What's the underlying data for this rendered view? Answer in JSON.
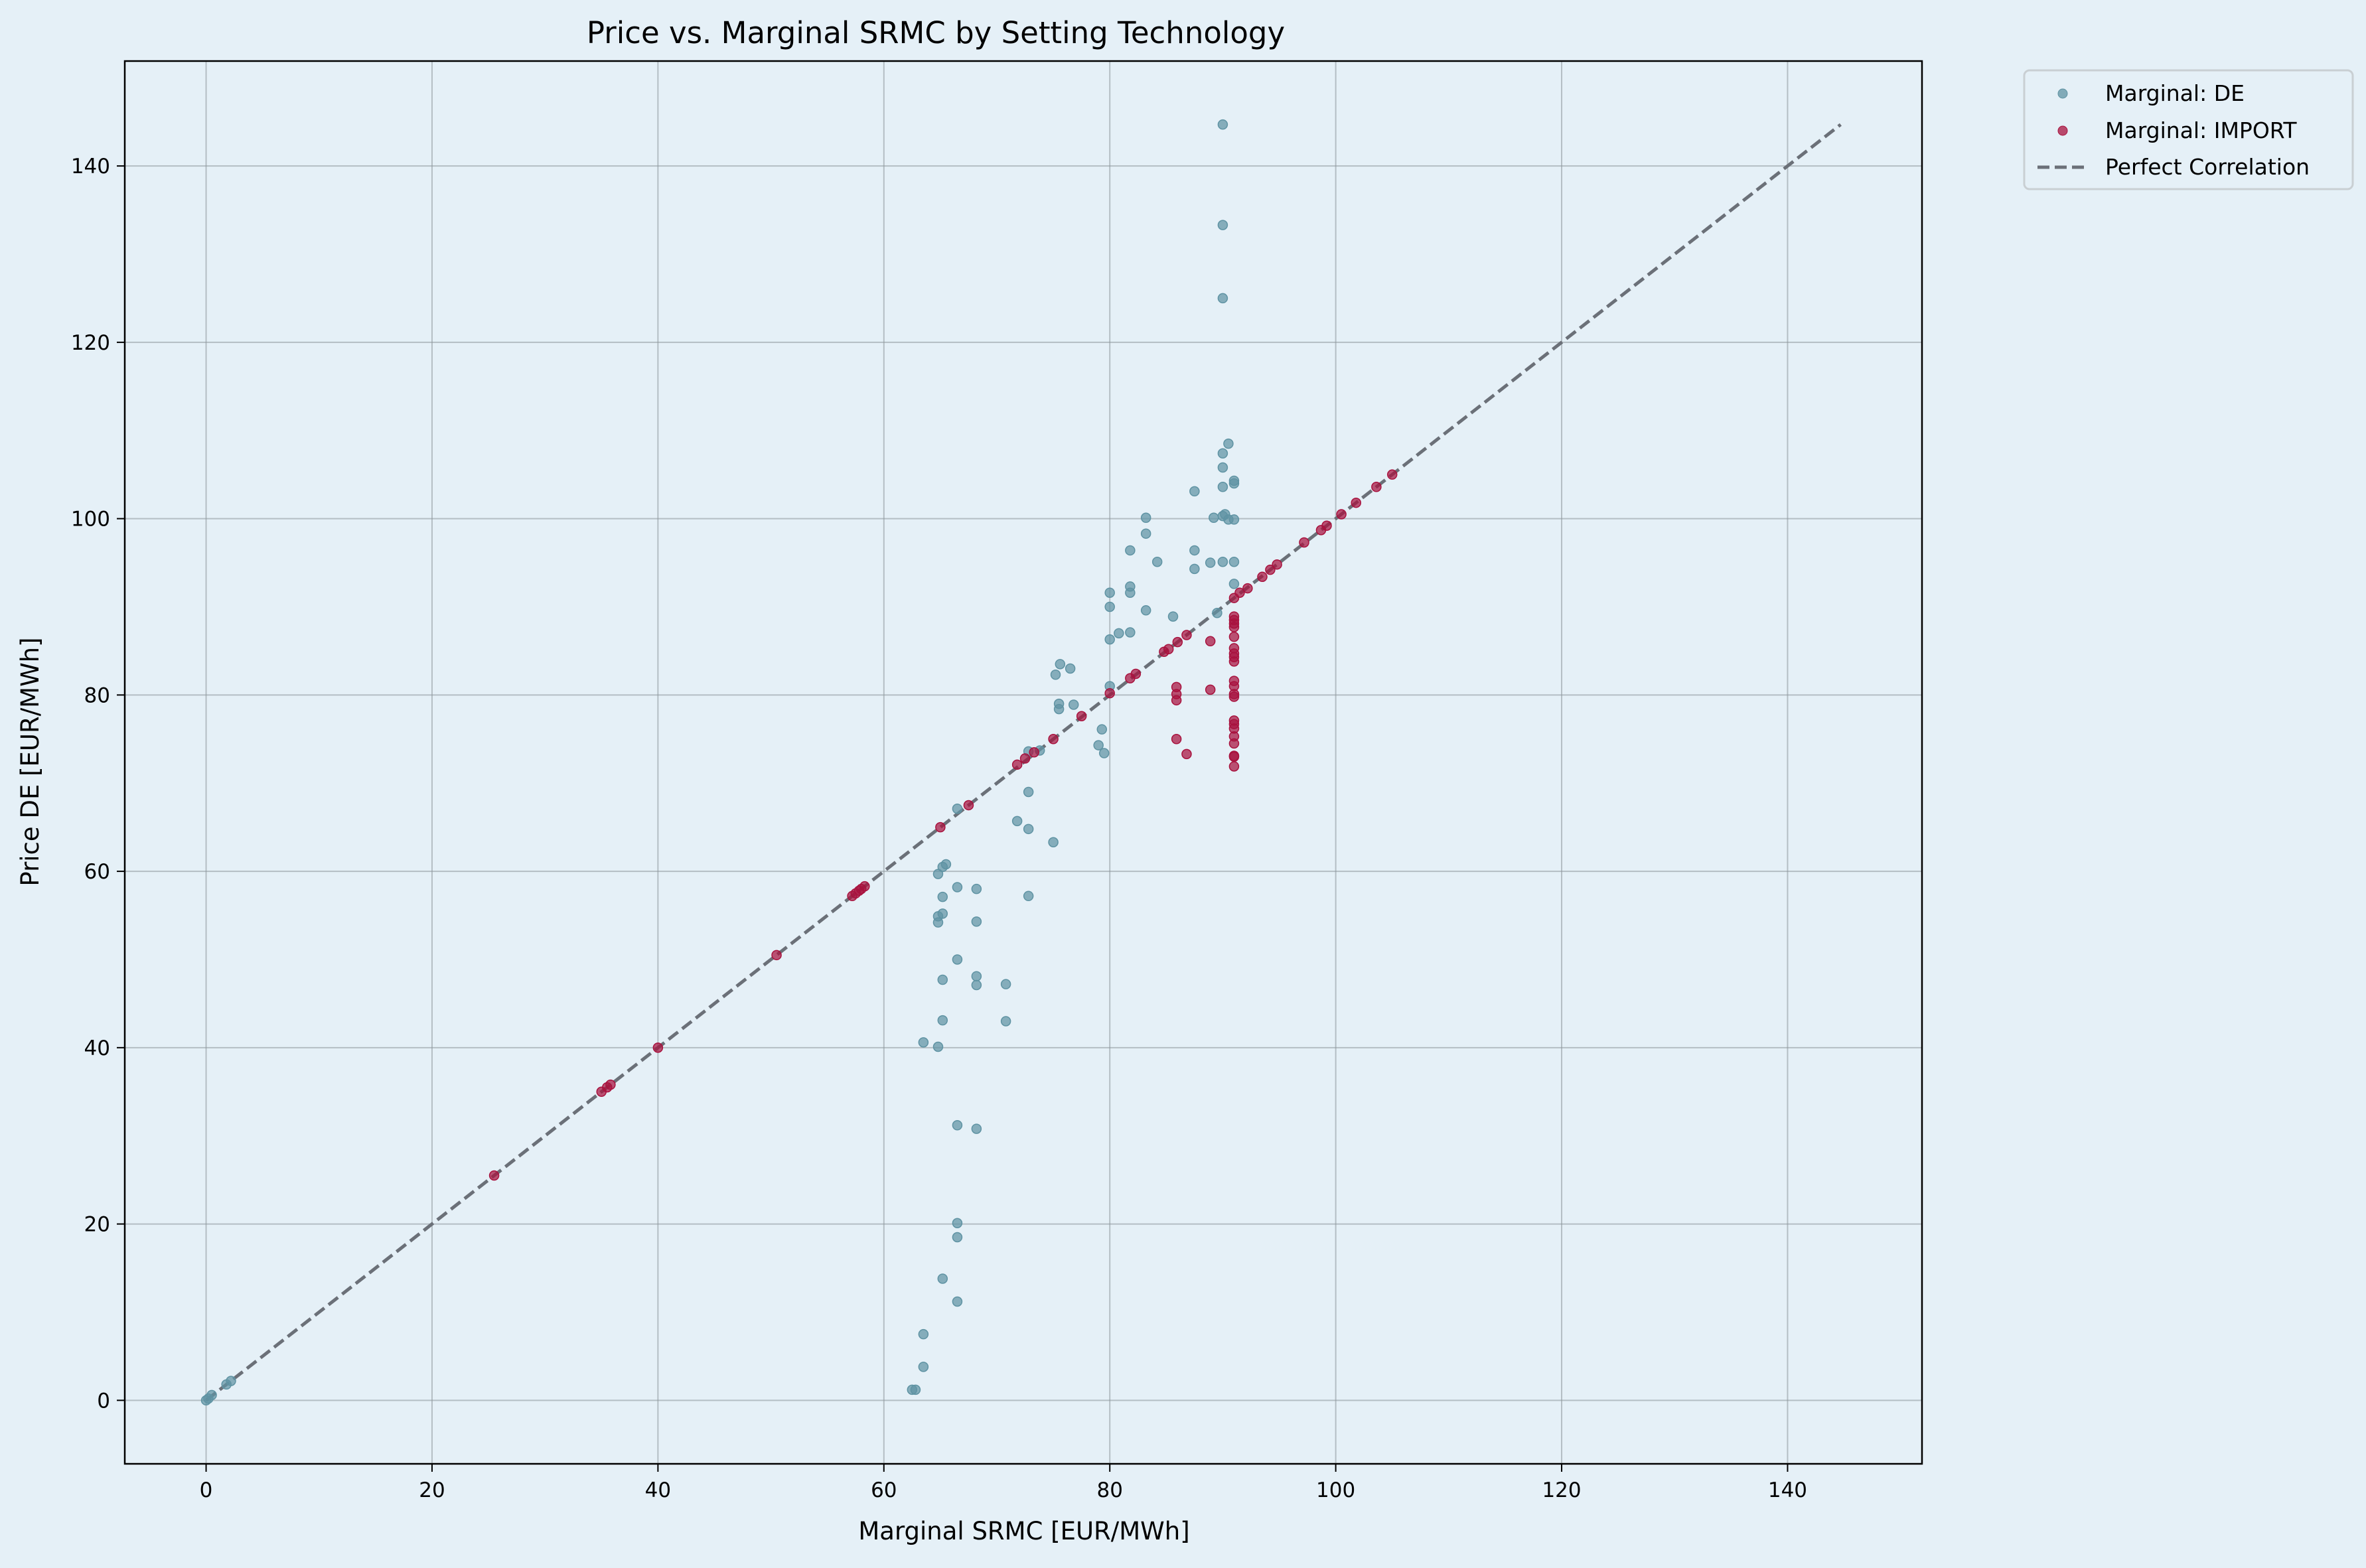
{
  "chart_data": {
    "type": "scatter",
    "title": "Price vs. Marginal SRMC by Setting Technology",
    "xlabel": "Marginal SRMC [EUR/MWh]",
    "ylabel": "Price DE [EUR/MWh]",
    "xlim": [
      -7.2,
      151.9
    ],
    "ylim": [
      -7.2,
      151.9
    ],
    "xticks": [
      0,
      20,
      40,
      60,
      80,
      100,
      120,
      140
    ],
    "yticks": [
      0,
      20,
      40,
      60,
      80,
      100,
      120,
      140
    ],
    "grid": true,
    "legend_position": "outside top-right",
    "colors": {
      "background": "#e5f0f7",
      "de": "#5f93a3",
      "import": "#a8123e",
      "reference": "#6b7078",
      "grid": "#8c959b"
    },
    "series": [
      {
        "name": "Marginal: DE",
        "color": "#5f93a3",
        "points": [
          [
            0,
            0
          ],
          [
            0.2,
            0.2
          ],
          [
            0.5,
            0.6
          ],
          [
            1.8,
            1.8
          ],
          [
            2.2,
            2.2
          ],
          [
            62.5,
            1.2
          ],
          [
            62.8,
            1.2
          ],
          [
            63.5,
            3.8
          ],
          [
            63.5,
            7.5
          ],
          [
            65.2,
            13.8
          ],
          [
            66.5,
            11.2
          ],
          [
            66.5,
            18.5
          ],
          [
            66.5,
            20.1
          ],
          [
            66.5,
            31.2
          ],
          [
            68.2,
            30.8
          ],
          [
            63.5,
            40.6
          ],
          [
            64.8,
            40.1
          ],
          [
            65.2,
            43.1
          ],
          [
            65.2,
            47.7
          ],
          [
            66.5,
            50.0
          ],
          [
            68.2,
            48.1
          ],
          [
            68.2,
            47.1
          ],
          [
            70.8,
            47.2
          ],
          [
            70.8,
            43.0
          ],
          [
            64.8,
            54.2
          ],
          [
            64.8,
            54.9
          ],
          [
            65.2,
            57.1
          ],
          [
            65.2,
            55.2
          ],
          [
            64.8,
            59.7
          ],
          [
            65.2,
            60.5
          ],
          [
            65.5,
            60.8
          ],
          [
            66.5,
            58.2
          ],
          [
            68.2,
            58.0
          ],
          [
            68.2,
            54.3
          ],
          [
            66.5,
            67.1
          ],
          [
            71.8,
            65.7
          ],
          [
            72.8,
            64.8
          ],
          [
            72.8,
            69.0
          ],
          [
            75.0,
            63.3
          ],
          [
            72.8,
            57.2
          ],
          [
            72.8,
            73.6
          ],
          [
            73.8,
            73.7
          ],
          [
            75.5,
            78.4
          ],
          [
            75.5,
            79.0
          ],
          [
            76.8,
            78.9
          ],
          [
            75.2,
            82.3
          ],
          [
            75.6,
            83.5
          ],
          [
            76.5,
            83.0
          ],
          [
            79.0,
            74.3
          ],
          [
            79.5,
            73.4
          ],
          [
            79.3,
            76.1
          ],
          [
            80.0,
            81.0
          ],
          [
            80.0,
            86.3
          ],
          [
            80.8,
            87.0
          ],
          [
            81.8,
            87.1
          ],
          [
            80.0,
            90.0
          ],
          [
            80.0,
            91.6
          ],
          [
            81.8,
            91.6
          ],
          [
            81.8,
            92.3
          ],
          [
            83.2,
            89.6
          ],
          [
            85.6,
            88.9
          ],
          [
            81.8,
            96.4
          ],
          [
            83.2,
            98.3
          ],
          [
            83.2,
            100.1
          ],
          [
            84.2,
            95.1
          ],
          [
            87.5,
            94.3
          ],
          [
            87.5,
            96.4
          ],
          [
            87.5,
            103.1
          ],
          [
            88.9,
            95.0
          ],
          [
            89.2,
            100.1
          ],
          [
            89.5,
            89.3
          ],
          [
            90.0,
            95.1
          ],
          [
            90.0,
            100.3
          ],
          [
            90.2,
            100.5
          ],
          [
            90.5,
            99.9
          ],
          [
            90.0,
            103.6
          ],
          [
            90.0,
            105.8
          ],
          [
            90.0,
            107.4
          ],
          [
            90.5,
            108.5
          ],
          [
            91.0,
            104.0
          ],
          [
            91.0,
            104.3
          ],
          [
            91.0,
            99.9
          ],
          [
            91.0,
            95.1
          ],
          [
            91.0,
            92.6
          ],
          [
            90.0,
            125.0
          ],
          [
            90.0,
            133.3
          ],
          [
            90.0,
            144.7
          ]
        ]
      },
      {
        "name": "Marginal: IMPORT",
        "color": "#a8123e",
        "points": [
          [
            25.5,
            25.5
          ],
          [
            35.0,
            35.0
          ],
          [
            35.5,
            35.5
          ],
          [
            35.8,
            35.8
          ],
          [
            40.0,
            40.0
          ],
          [
            50.5,
            50.5
          ],
          [
            57.2,
            57.2
          ],
          [
            57.5,
            57.5
          ],
          [
            57.8,
            57.8
          ],
          [
            58.0,
            58.0
          ],
          [
            58.3,
            58.3
          ],
          [
            65.0,
            65.0
          ],
          [
            67.5,
            67.5
          ],
          [
            71.8,
            72.1
          ],
          [
            72.5,
            72.8
          ],
          [
            73.3,
            73.5
          ],
          [
            75.0,
            75.0
          ],
          [
            77.5,
            77.6
          ],
          [
            80.0,
            80.2
          ],
          [
            81.8,
            81.9
          ],
          [
            82.3,
            82.4
          ],
          [
            84.8,
            84.9
          ],
          [
            85.2,
            85.2
          ],
          [
            86.0,
            86.0
          ],
          [
            86.8,
            86.8
          ],
          [
            88.9,
            86.1
          ],
          [
            85.9,
            75.0
          ],
          [
            86.8,
            73.3
          ],
          [
            85.9,
            79.4
          ],
          [
            85.9,
            80.1
          ],
          [
            85.9,
            80.9
          ],
          [
            88.9,
            80.6
          ],
          [
            91.0,
            71.9
          ],
          [
            91.0,
            73.0
          ],
          [
            91.0,
            73.1
          ],
          [
            91.0,
            74.5
          ],
          [
            91.0,
            75.3
          ],
          [
            91.0,
            76.2
          ],
          [
            91.0,
            76.7
          ],
          [
            91.0,
            77.1
          ],
          [
            91.0,
            79.8
          ],
          [
            91.0,
            80.1
          ],
          [
            91.0,
            81.0
          ],
          [
            91.0,
            81.6
          ],
          [
            91.0,
            83.8
          ],
          [
            91.0,
            84.3
          ],
          [
            91.0,
            84.7
          ],
          [
            91.0,
            85.3
          ],
          [
            91.0,
            86.6
          ],
          [
            91.0,
            87.7
          ],
          [
            91.0,
            88.1
          ],
          [
            91.0,
            88.5
          ],
          [
            91.0,
            88.9
          ],
          [
            91.0,
            91.0
          ],
          [
            91.5,
            91.6
          ],
          [
            92.2,
            92.1
          ],
          [
            93.5,
            93.4
          ],
          [
            94.2,
            94.2
          ],
          [
            94.8,
            94.8
          ],
          [
            97.2,
            97.3
          ],
          [
            98.7,
            98.7
          ],
          [
            99.2,
            99.2
          ],
          [
            100.5,
            100.5
          ],
          [
            101.8,
            101.8
          ],
          [
            103.6,
            103.6
          ],
          [
            105.0,
            105.0
          ]
        ]
      }
    ],
    "reference_line": {
      "name": "Perfect Correlation",
      "style": "dashed",
      "x": [
        0,
        144.7
      ],
      "y": [
        0,
        144.7
      ]
    }
  }
}
